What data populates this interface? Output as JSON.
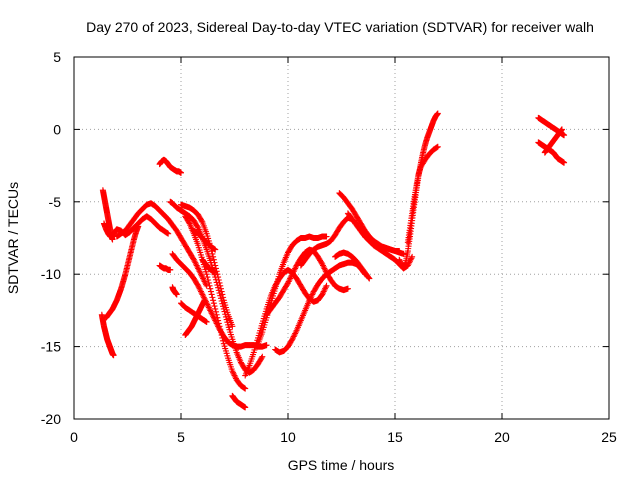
{
  "chart_data": {
    "type": "scatter",
    "title": "Day 270 of 2023, Sidereal Day-to-day VTEC variation (SDTVAR) for receiver walh",
    "xlabel": "GPS time / hours",
    "ylabel": "SDTVAR / TECUs",
    "xlim": [
      0,
      25
    ],
    "ylim": [
      -20,
      5
    ],
    "xticks": [
      "0",
      "5",
      "10",
      "15",
      "20",
      "25"
    ],
    "yticks": [
      "5",
      "0",
      "-5",
      "-10",
      "-15",
      "-20"
    ],
    "grid": true,
    "legend": "none",
    "marker": "plus",
    "color": "#ff0000",
    "series": [
      {
        "x": [
          1.35,
          1.4,
          1.45,
          1.5,
          1.55,
          1.6,
          1.65,
          1.7,
          1.75,
          1.8
        ],
        "y": [
          -4.2,
          -4.6,
          -5.0,
          -5.4,
          -5.8,
          -6.2,
          -6.6,
          -7.0,
          -7.4,
          -7.6
        ]
      },
      {
        "x": [
          1.4,
          1.5,
          1.6,
          1.7,
          1.8,
          1.9,
          2.0,
          2.2,
          2.4,
          2.6,
          2.8,
          3.0,
          3.2,
          3.4,
          3.6,
          3.8,
          4.0,
          4.2,
          4.4
        ],
        "y": [
          -6.5,
          -6.9,
          -7.2,
          -7.4,
          -7.3,
          -7.1,
          -6.9,
          -7.0,
          -7.3,
          -7.1,
          -6.8,
          -6.5,
          -6.2,
          -6.0,
          -6.2,
          -6.5,
          -6.8,
          -7.0,
          -7.2
        ]
      },
      {
        "x": [
          2.0,
          2.2,
          2.4,
          2.6,
          2.8,
          3.0,
          3.2,
          3.4,
          3.6,
          3.8,
          4.0,
          4.2,
          4.4,
          4.6,
          4.8,
          5.0,
          5.2,
          5.4,
          5.6,
          5.8,
          6.0,
          6.2
        ],
        "y": [
          -7.4,
          -7.2,
          -7.0,
          -6.6,
          -6.2,
          -5.8,
          -5.5,
          -5.2,
          -5.1,
          -5.3,
          -5.6,
          -5.9,
          -6.2,
          -6.6,
          -7.0,
          -7.5,
          -8.0,
          -8.5,
          -9.0,
          -9.6,
          -10.2,
          -10.8
        ]
      },
      {
        "x": [
          1.3,
          1.35,
          1.4,
          1.45,
          1.5,
          1.55,
          1.6,
          1.65,
          1.7,
          1.75,
          1.8,
          1.85
        ],
        "y": [
          -12.8,
          -13.2,
          -13.6,
          -13.9,
          -14.2,
          -14.5,
          -14.7,
          -14.9,
          -15.1,
          -15.3,
          -15.5,
          -15.6
        ]
      },
      {
        "x": [
          1.5,
          1.6,
          1.7,
          1.8,
          1.9,
          2.0,
          2.1,
          2.2,
          2.3,
          2.4,
          2.5,
          2.6,
          2.7,
          2.8,
          2.9,
          3.0
        ],
        "y": [
          -13.0,
          -12.8,
          -12.6,
          -12.4,
          -12.1,
          -11.8,
          -11.4,
          -11.0,
          -10.5,
          -10.0,
          -9.4,
          -8.8,
          -8.2,
          -7.6,
          -7.1,
          -6.7
        ]
      },
      {
        "x": [
          4.0,
          4.1,
          4.2,
          4.3,
          4.4,
          4.5,
          4.6,
          4.7,
          4.8,
          4.9,
          5.0
        ],
        "y": [
          -2.4,
          -2.2,
          -2.1,
          -2.2,
          -2.4,
          -2.6,
          -2.7,
          -2.8,
          -2.9,
          -2.9,
          -3.0
        ]
      },
      {
        "x": [
          4.0,
          4.1,
          4.2,
          4.3,
          4.4,
          4.5
        ],
        "y": [
          -9.4,
          -9.5,
          -9.6,
          -9.6,
          -9.7,
          -9.7
        ]
      },
      {
        "x": [
          4.6,
          4.65,
          4.7,
          4.75,
          4.8
        ],
        "y": [
          -10.9,
          -11.1,
          -11.2,
          -11.3,
          -11.4
        ]
      },
      {
        "x": [
          4.5,
          4.6,
          4.8,
          5.0,
          5.2,
          5.4,
          5.6,
          5.8,
          6.0,
          6.2,
          6.4,
          6.6,
          6.8,
          7.0,
          7.2,
          7.4,
          7.6,
          7.8,
          8.0,
          8.2,
          8.4,
          8.6,
          8.8
        ],
        "y": [
          -5.0,
          -5.1,
          -5.4,
          -5.6,
          -5.8,
          -6.0,
          -6.3,
          -6.8,
          -7.5,
          -8.3,
          -9.2,
          -10.2,
          -11.3,
          -12.4,
          -13.5,
          -14.5,
          -15.4,
          -16.1,
          -16.6,
          -16.8,
          -16.6,
          -16.2,
          -15.7
        ]
      },
      {
        "x": [
          4.6,
          4.8,
          5.0,
          5.2,
          5.4,
          5.6,
          5.8,
          6.0,
          6.2,
          6.4,
          6.6,
          6.8,
          7.0,
          7.2,
          7.4,
          7.6,
          7.8,
          8.0,
          8.2,
          8.4,
          8.6,
          8.8,
          9.0
        ],
        "y": [
          -8.6,
          -9.0,
          -9.3,
          -9.6,
          -9.9,
          -10.3,
          -10.8,
          -11.4,
          -12.0,
          -12.6,
          -13.2,
          -13.8,
          -14.3,
          -14.7,
          -14.9,
          -15.0,
          -15.0,
          -14.9,
          -14.9,
          -14.9,
          -15.0,
          -15.0,
          -14.9
        ]
      },
      {
        "x": [
          5.2,
          5.4,
          5.6,
          5.8,
          6.0,
          6.2,
          6.4,
          6.6,
          6.8,
          7.0,
          7.2,
          7.4,
          7.6,
          7.8,
          8.0
        ],
        "y": [
          -6.0,
          -6.5,
          -7.2,
          -8.0,
          -9.0,
          -10.0,
          -11.2,
          -12.4,
          -13.6,
          -14.8,
          -15.8,
          -16.7,
          -17.3,
          -17.7,
          -17.9
        ]
      },
      {
        "x": [
          5.0,
          5.2,
          5.4,
          5.6,
          5.8,
          6.0,
          6.2,
          6.4,
          6.6,
          6.8,
          7.0,
          7.2,
          7.4
        ],
        "y": [
          -5.2,
          -5.3,
          -5.4,
          -5.6,
          -5.9,
          -6.4,
          -7.2,
          -8.2,
          -9.4,
          -10.6,
          -11.8,
          -12.8,
          -13.6
        ]
      },
      {
        "x": [
          5.6,
          5.8,
          6.0,
          6.2,
          6.4,
          6.6
        ],
        "y": [
          -7.0,
          -7.2,
          -7.5,
          -7.8,
          -8.1,
          -8.3
        ]
      },
      {
        "x": [
          6.0,
          6.1,
          6.2,
          6.3,
          6.4,
          6.5,
          6.6
        ],
        "y": [
          -9.0,
          -9.2,
          -9.4,
          -9.6,
          -9.7,
          -9.8,
          -9.9
        ]
      },
      {
        "x": [
          5.2,
          5.3,
          5.4,
          5.5,
          5.6,
          5.7,
          5.8,
          5.9,
          6.0,
          6.1
        ],
        "y": [
          -14.2,
          -14.0,
          -13.8,
          -13.6,
          -13.3,
          -13.0,
          -12.7,
          -12.4,
          -12.1,
          -11.8
        ]
      },
      {
        "x": [
          5.0,
          5.2,
          5.4,
          5.6,
          5.8,
          6.0,
          6.2
        ],
        "y": [
          -12.0,
          -12.3,
          -12.5,
          -12.7,
          -12.9,
          -13.1,
          -13.3
        ]
      },
      {
        "x": [
          7.4,
          7.5,
          7.6,
          7.7,
          7.8,
          7.9,
          8.0
        ],
        "y": [
          -18.4,
          -18.6,
          -18.8,
          -18.9,
          -19.0,
          -19.1,
          -19.2
        ]
      },
      {
        "x": [
          8.0,
          8.2,
          8.4,
          8.6,
          8.8,
          9.0,
          9.2,
          9.4,
          9.6,
          9.8,
          10.0,
          10.2,
          10.4,
          10.6,
          10.8,
          11.0,
          11.2,
          11.4,
          11.6,
          11.8
        ],
        "y": [
          -17.0,
          -16.3,
          -15.4,
          -14.4,
          -13.4,
          -12.4,
          -11.5,
          -10.8,
          -10.3,
          -9.9,
          -9.7,
          -9.9,
          -10.3,
          -10.8,
          -11.3,
          -11.7,
          -11.9,
          -11.8,
          -11.4,
          -10.8
        ]
      },
      {
        "x": [
          8.6,
          8.8,
          9.0,
          9.2,
          9.4,
          9.6,
          9.8,
          10.0,
          10.2,
          10.4,
          10.6,
          10.8,
          11.0,
          11.2,
          11.4,
          11.6,
          11.8
        ],
        "y": [
          -14.8,
          -14.0,
          -13.0,
          -12.0,
          -11.0,
          -10.0,
          -9.2,
          -8.5,
          -8.0,
          -7.7,
          -7.5,
          -7.5,
          -7.4,
          -7.5,
          -7.5,
          -7.4,
          -7.4
        ]
      },
      {
        "x": [
          9.0,
          9.2,
          9.4,
          9.6,
          9.8,
          10.0,
          10.2,
          10.4,
          10.6,
          10.8,
          11.0,
          11.2,
          11.4,
          11.6,
          11.8,
          12.0,
          12.2,
          12.4,
          12.6,
          12.8
        ],
        "y": [
          -12.8,
          -12.4,
          -12.0,
          -11.6,
          -11.1,
          -10.6,
          -10.0,
          -9.4,
          -8.9,
          -8.5,
          -8.3,
          -8.4,
          -8.8,
          -9.3,
          -9.9,
          -10.4,
          -10.8,
          -11.0,
          -11.1,
          -11.0
        ]
      },
      {
        "x": [
          9.4,
          9.6,
          9.8,
          10.0,
          10.2,
          10.4,
          10.6,
          10.8,
          11.0,
          11.2,
          11.4,
          11.6,
          11.8,
          12.0,
          12.2,
          12.4,
          12.6,
          12.8,
          13.0,
          13.2,
          13.4,
          13.6
        ],
        "y": [
          -15.2,
          -15.4,
          -15.3,
          -15.0,
          -14.5,
          -13.9,
          -13.2,
          -12.5,
          -11.8,
          -11.2,
          -10.7,
          -10.3,
          -10.0,
          -9.8,
          -9.6,
          -9.4,
          -9.3,
          -9.2,
          -9.2,
          -9.3,
          -9.6,
          -10.0
        ]
      },
      {
        "x": [
          10.6,
          10.8,
          11.0,
          11.2,
          11.4,
          11.6,
          11.8,
          12.0,
          12.2,
          12.4,
          12.6,
          12.8,
          13.0,
          13.2,
          13.4,
          13.6,
          13.8,
          14.0,
          14.2,
          14.4,
          14.6,
          14.8,
          15.0,
          15.2
        ],
        "y": [
          -9.4,
          -9.0,
          -8.6,
          -8.3,
          -8.1,
          -8.0,
          -7.9,
          -7.7,
          -7.3,
          -6.8,
          -6.4,
          -6.1,
          -6.2,
          -6.6,
          -7.0,
          -7.4,
          -7.7,
          -7.9,
          -8.0,
          -8.1,
          -8.2,
          -8.3,
          -8.4,
          -8.4
        ]
      },
      {
        "x": [
          12.4,
          12.6,
          12.8,
          13.0,
          13.2,
          13.4,
          13.6,
          13.8,
          14.0,
          14.2,
          14.4,
          14.6,
          14.8,
          15.0,
          15.2,
          15.4
        ],
        "y": [
          -4.4,
          -4.7,
          -5.1,
          -5.5,
          -6.0,
          -6.5,
          -7.0,
          -7.4,
          -7.7,
          -7.9,
          -8.1,
          -8.2,
          -8.3,
          -8.4,
          -8.5,
          -8.6
        ]
      },
      {
        "x": [
          12.8,
          13.0,
          13.2,
          13.4,
          13.6,
          13.8,
          14.0,
          14.2,
          14.4,
          14.6,
          14.8,
          15.0,
          15.2,
          15.4,
          15.6,
          15.8
        ],
        "y": [
          -5.8,
          -6.2,
          -6.6,
          -7.0,
          -7.4,
          -7.7,
          -8.0,
          -8.2,
          -8.4,
          -8.6,
          -8.8,
          -9.0,
          -9.3,
          -9.6,
          -9.4,
          -8.8
        ]
      },
      {
        "x": [
          12.2,
          12.4,
          12.6,
          12.8,
          13.0,
          13.2,
          13.4,
          13.6,
          13.8
        ],
        "y": [
          -8.8,
          -8.6,
          -8.5,
          -8.6,
          -8.8,
          -9.1,
          -9.5,
          -9.9,
          -10.3
        ]
      },
      {
        "x": [
          15.2,
          15.3,
          15.4,
          15.5,
          15.6,
          15.7,
          15.8,
          15.9,
          16.0,
          16.1,
          16.2,
          16.3,
          16.4,
          16.5,
          16.6,
          16.7,
          16.8,
          16.9,
          17.0
        ],
        "y": [
          -9.0,
          -9.4,
          -9.6,
          -9.2,
          -8.4,
          -7.4,
          -6.3,
          -5.2,
          -4.2,
          -3.2,
          -2.4,
          -1.7,
          -1.1,
          -0.6,
          -0.2,
          0.2,
          0.6,
          0.9,
          1.1
        ]
      },
      {
        "x": [
          15.6,
          15.7,
          15.8,
          15.9,
          16.0,
          16.1,
          16.2,
          16.4,
          16.6,
          16.8,
          17.0
        ],
        "y": [
          -7.8,
          -6.8,
          -5.8,
          -4.8,
          -3.9,
          -3.1,
          -2.6,
          -2.1,
          -1.7,
          -1.4,
          -1.2
        ]
      },
      {
        "x": [
          21.7,
          21.8,
          21.9,
          22.0,
          22.1,
          22.2,
          22.3,
          22.4,
          22.5,
          22.6,
          22.7,
          22.8,
          22.9
        ],
        "y": [
          0.8,
          0.7,
          0.6,
          0.5,
          0.4,
          0.3,
          0.2,
          0.1,
          0.0,
          -0.1,
          -0.2,
          -0.3,
          -0.4
        ]
      },
      {
        "x": [
          21.7,
          21.8,
          21.9,
          22.0,
          22.1,
          22.2,
          22.3,
          22.4,
          22.5,
          22.6,
          22.7,
          22.8,
          22.9
        ],
        "y": [
          -0.9,
          -1.0,
          -1.1,
          -1.2,
          -1.3,
          -1.4,
          -1.5,
          -1.6,
          -1.8,
          -2.0,
          -2.1,
          -2.2,
          -2.3
        ]
      },
      {
        "x": [
          22.0,
          22.1,
          22.2,
          22.3,
          22.4,
          22.5,
          22.6,
          22.7,
          22.8
        ],
        "y": [
          -1.6,
          -1.4,
          -1.2,
          -1.0,
          -0.8,
          -0.6,
          -0.4,
          -0.2,
          0.0
        ]
      }
    ]
  }
}
